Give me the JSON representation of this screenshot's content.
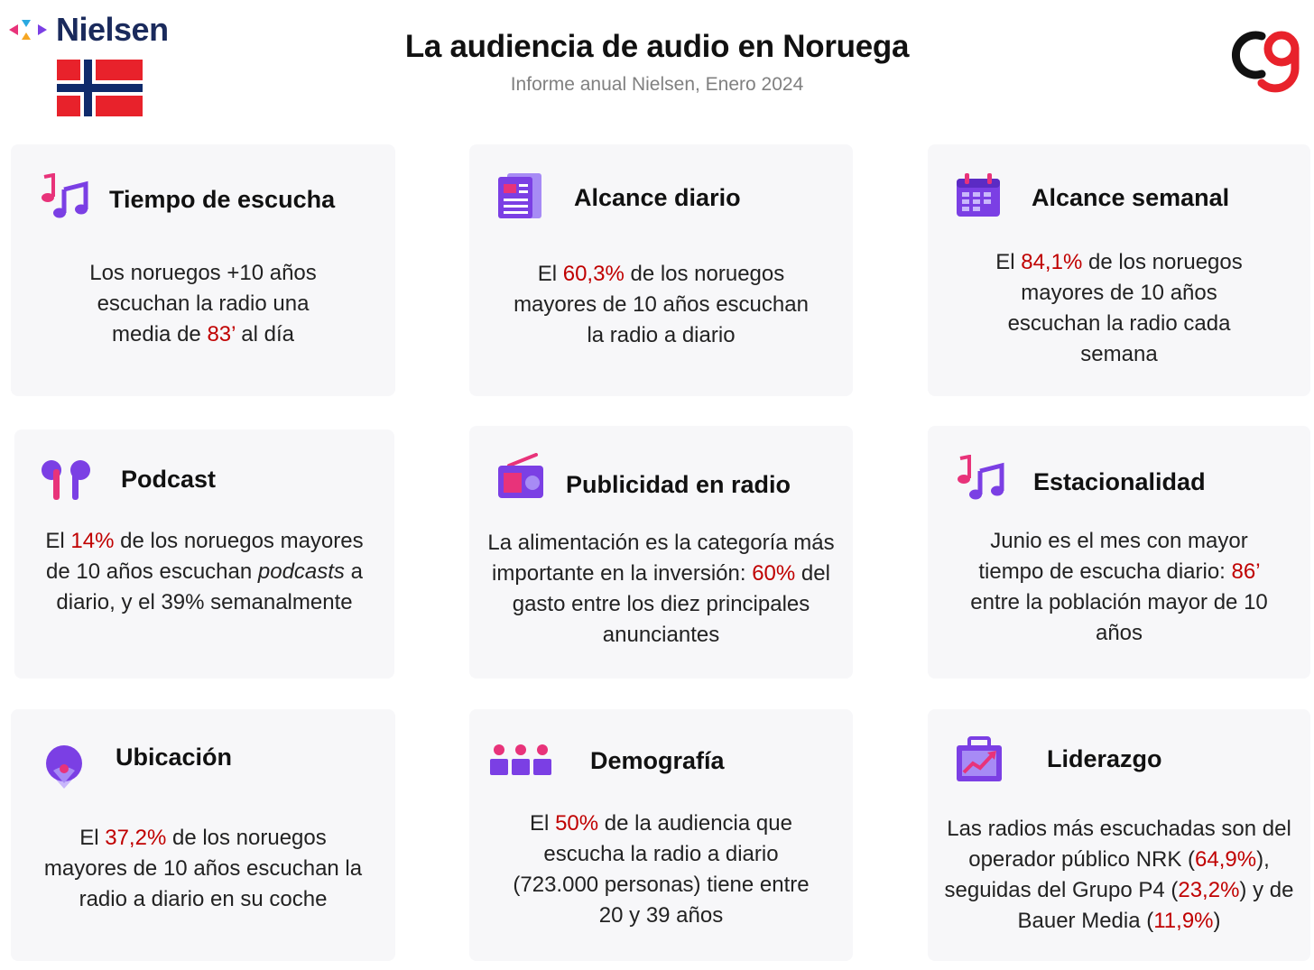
{
  "header": {
    "brand": "Nielsen",
    "title": "La audiencia de audio en Noruega",
    "subtitle": "Informe anual Nielsen, Enero 2024"
  },
  "colors": {
    "highlight": "#c00000",
    "card_bg": "#f7f7f9",
    "icon_purple": "#7b3fe4",
    "icon_pink": "#e8337a",
    "brand_navy": "#1a2a5c",
    "flag_red": "#e8222b",
    "flag_blue": "#0f2a6b"
  },
  "cards": [
    {
      "id": "tiempo",
      "icon": "music-notes-icon",
      "title": "Tiempo de escucha",
      "body": [
        {
          "text": "Los noruegos +10 años escuchan la radio una media de "
        },
        {
          "text": "83’",
          "hl": true
        },
        {
          "text": " al día"
        }
      ]
    },
    {
      "id": "alcance-diario",
      "icon": "newspaper-icon",
      "title": "Alcance diario",
      "body": [
        {
          "text": "El "
        },
        {
          "text": "60,3%",
          "hl": true
        },
        {
          "text": " de los noruegos mayores de 10 años escuchan la radio a diario"
        }
      ]
    },
    {
      "id": "alcance-semanal",
      "icon": "calendar-icon",
      "title": "Alcance semanal",
      "body": [
        {
          "text": "El "
        },
        {
          "text": "84,1%",
          "hl": true
        },
        {
          "text": " de los noruegos mayores de 10 años escuchan la radio cada semana"
        }
      ]
    },
    {
      "id": "podcast",
      "icon": "earbuds-icon",
      "title": "Podcast",
      "body": [
        {
          "text": "El "
        },
        {
          "text": "14%",
          "hl": true
        },
        {
          "text": " de los noruegos mayores de 10 años escuchan "
        },
        {
          "text": "podcasts",
          "em": true
        },
        {
          "text": " a diario, y el 39% semanalmente"
        }
      ]
    },
    {
      "id": "publicidad",
      "icon": "radio-icon",
      "title": "Publicidad en radio",
      "body": [
        {
          "text": "La alimentación es la categoría más importante en la inversión: "
        },
        {
          "text": "60%",
          "hl": true
        },
        {
          "text": " del gasto entre los diez principales anunciantes"
        }
      ]
    },
    {
      "id": "estacionalidad",
      "icon": "music-notes-icon",
      "title": "Estacionalidad",
      "body": [
        {
          "text": "Junio es el mes con mayor tiempo de escucha diario: "
        },
        {
          "text": "86’",
          "hl": true
        },
        {
          "text": " entre la población mayor de 10 años"
        }
      ]
    },
    {
      "id": "ubicacion",
      "icon": "location-pin-icon",
      "title": "Ubicación",
      "body": [
        {
          "text": "El "
        },
        {
          "text": "37,2%",
          "hl": true
        },
        {
          "text": " de los noruegos mayores de 10 años escuchan la radio a diario en su coche"
        }
      ]
    },
    {
      "id": "demografia",
      "icon": "people-group-icon",
      "title": "Demografía",
      "body": [
        {
          "text": "El "
        },
        {
          "text": "50%",
          "hl": true
        },
        {
          "text": " de la audiencia que escucha la radio a diario (723.000 personas) tiene entre 20 y 39 años"
        }
      ]
    },
    {
      "id": "liderazgo",
      "icon": "briefcase-chart-icon",
      "title": "Liderazgo",
      "body": [
        {
          "text": "Las radios más escuchadas son del operador público NRK ("
        },
        {
          "text": "64,9%",
          "hl": true
        },
        {
          "text": "), seguidas del Grupo P4 ("
        },
        {
          "text": "23,2%",
          "hl": true
        },
        {
          "text": ") y de Bauer Media ("
        },
        {
          "text": "11,9%",
          "hl": true
        },
        {
          "text": ")"
        }
      ]
    }
  ]
}
